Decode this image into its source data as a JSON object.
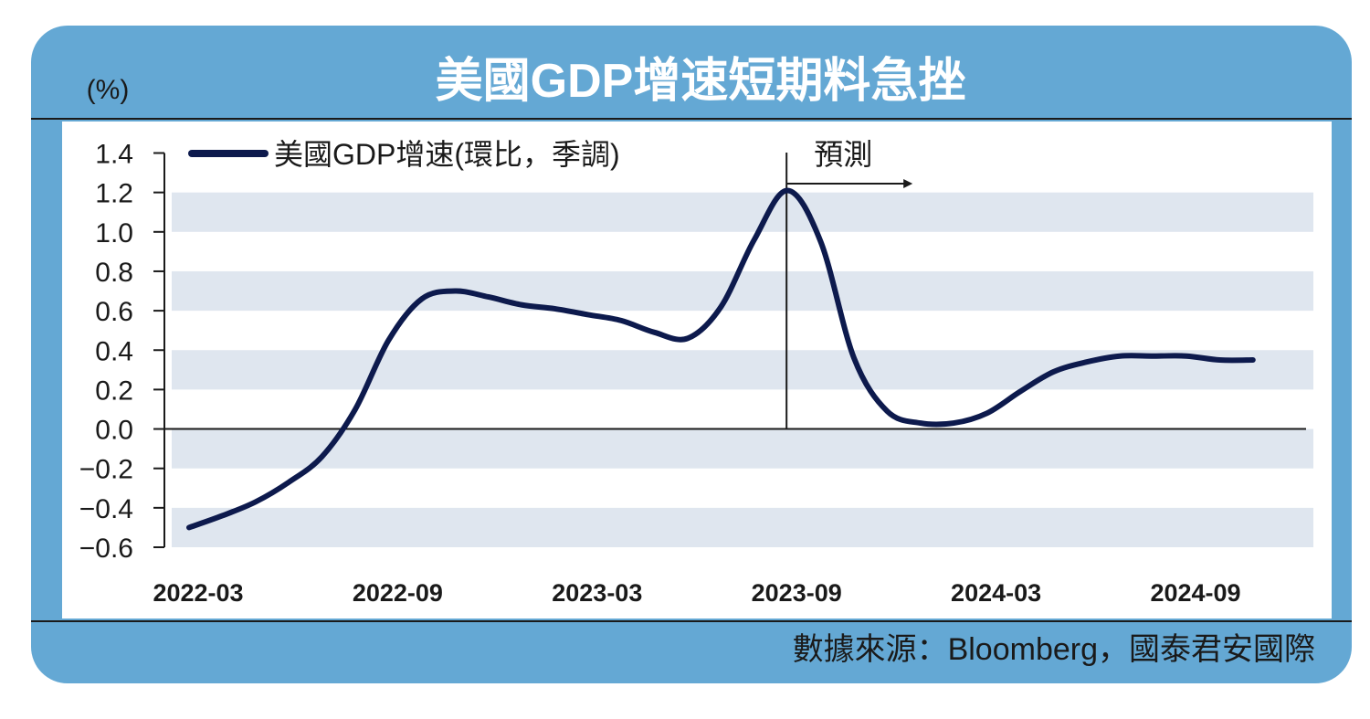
{
  "title": "美國GDP增速短期料急挫",
  "unit_label": "(%)",
  "source": "數據來源：Bloomberg，國泰君安國際",
  "forecast_label": "預測",
  "colors": {
    "frame": "#64a8d4",
    "band": "#dfe6ef",
    "line": "#0d1a4d",
    "title_text": "#ffffff",
    "axis_text": "#1a1a1a"
  },
  "chart_data": {
    "type": "line",
    "title": "美國GDP增速短期料急挫",
    "ylabel": "(%)",
    "xlabel": "",
    "ylim": [
      -0.6,
      1.4
    ],
    "yticks": [
      1.4,
      1.2,
      1.0,
      0.8,
      0.6,
      0.4,
      0.2,
      0.0,
      -0.2,
      -0.4,
      -0.6
    ],
    "ytick_labels": [
      "1.4",
      "1.2",
      "1.0",
      "0.8",
      "0.6",
      "0.4",
      "0.2",
      "0.0",
      "−0.2",
      "−0.4",
      "−0.6"
    ],
    "x_tick_labels": [
      {
        "index": 0,
        "label": "2022-03"
      },
      {
        "index": 6,
        "label": "2022-09"
      },
      {
        "index": 12,
        "label": "2023-03"
      },
      {
        "index": 18,
        "label": "2023-09"
      },
      {
        "index": 24,
        "label": "2024-03"
      },
      {
        "index": 30,
        "label": "2024-09"
      }
    ],
    "forecast_start_index": 18,
    "legend": "top-left",
    "grid": "alternating horizontal bands",
    "series": [
      {
        "name": "美國GDP增速(環比，季調)",
        "points": [
          [
            0,
            -0.5
          ],
          [
            1,
            -0.44
          ],
          [
            2,
            -0.37
          ],
          [
            3,
            -0.27
          ],
          [
            4,
            -0.14
          ],
          [
            5,
            0.1
          ],
          [
            6,
            0.45
          ],
          [
            7,
            0.66
          ],
          [
            8,
            0.7
          ],
          [
            9,
            0.67
          ],
          [
            10,
            0.63
          ],
          [
            11,
            0.61
          ],
          [
            12,
            0.58
          ],
          [
            13,
            0.55
          ],
          [
            14,
            0.49
          ],
          [
            15,
            0.46
          ],
          [
            16,
            0.62
          ],
          [
            17,
            0.96
          ],
          [
            18,
            1.21
          ],
          [
            19,
            0.95
          ],
          [
            20,
            0.36
          ],
          [
            21,
            0.09
          ],
          [
            22,
            0.03
          ],
          [
            23,
            0.03
          ],
          [
            24,
            0.08
          ],
          [
            25,
            0.19
          ],
          [
            26,
            0.29
          ],
          [
            27,
            0.34
          ],
          [
            28,
            0.37
          ],
          [
            29,
            0.37
          ],
          [
            30,
            0.37
          ],
          [
            31,
            0.35
          ],
          [
            32,
            0.35
          ]
        ]
      }
    ]
  }
}
